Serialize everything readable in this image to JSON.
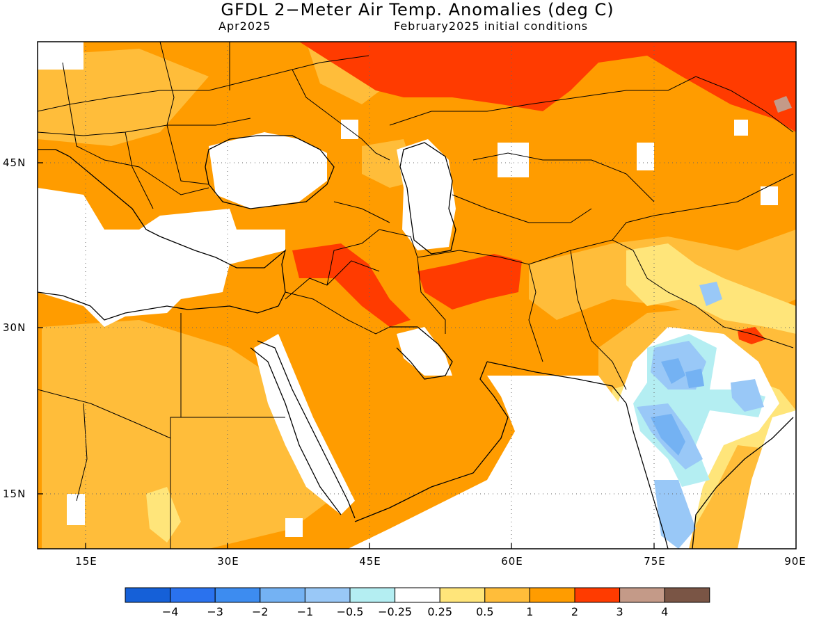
{
  "title": "GFDL 2−Meter Air Temp. Anomalies (deg C)",
  "subtitle_left": "Apr2025",
  "subtitle_right": "February2025 initial conditions",
  "axes": {
    "lat_ticks": [
      "45N",
      "30N",
      "15N"
    ],
    "lon_ticks": [
      "15E",
      "30E",
      "45E",
      "60E",
      "75E",
      "90E"
    ],
    "lon_range": [
      10,
      90
    ],
    "lat_range": [
      10,
      55
    ],
    "grid": "dotted"
  },
  "legend": {
    "colors": [
      "#1560d8",
      "#2a72ee",
      "#3d8cf0",
      "#74b2f3",
      "#99c8f7",
      "#b4eef2",
      "#ffffff",
      "#ffe57a",
      "#ffbd3a",
      "#ff9c00",
      "#ff3b00",
      "#c49a88",
      "#7a5545"
    ],
    "labels": [
      "−4",
      "−3",
      "−2",
      "−1",
      "−0.5",
      "−0.25",
      "0.25",
      "0.5",
      "1",
      "2",
      "3",
      "4"
    ]
  }
}
